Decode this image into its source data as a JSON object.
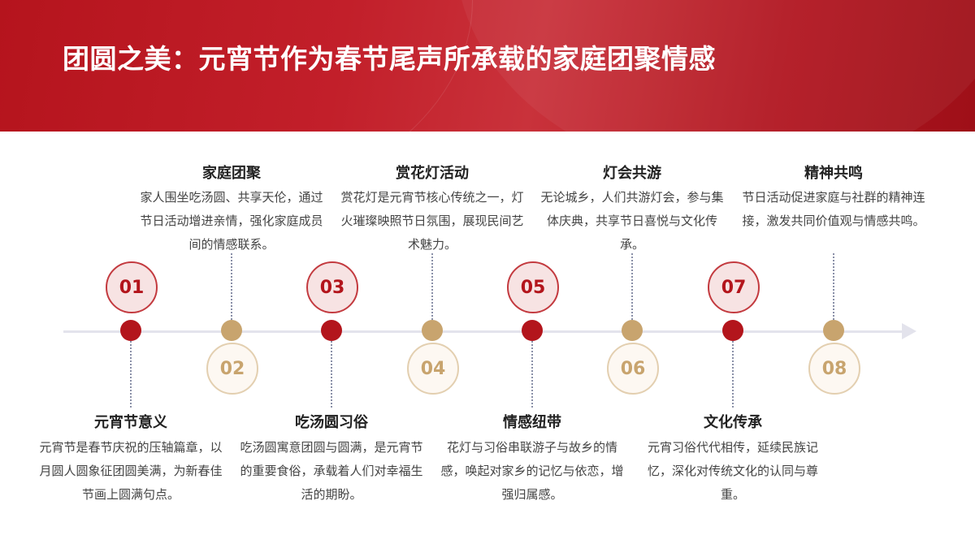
{
  "title": "团圆之美：元宵节作为春节尾声所承载的家庭团聚情感",
  "colors": {
    "header_red": "#b5141d",
    "accent_red": "#b3151c",
    "accent_gold": "#c8a46e",
    "axis": "#e3e3ec"
  },
  "timeline": [
    {
      "num": "01",
      "heading": "元宵节意义",
      "desc": "元宵节是春节庆祝的压轴篇章，以月圆人圆象征团圆美满，为新春佳节画上圆满句点。"
    },
    {
      "num": "02",
      "heading": "家庭团聚",
      "desc": "家人围坐吃汤圆、共享天伦，通过节日活动增进亲情，强化家庭成员间的情感联系。"
    },
    {
      "num": "03",
      "heading": "吃汤圆习俗",
      "desc": "吃汤圆寓意团圆与圆满，是元宵节的重要食俗，承载着人们对幸福生活的期盼。"
    },
    {
      "num": "04",
      "heading": "赏花灯活动",
      "desc": "赏花灯是元宵节核心传统之一，灯火璀璨映照节日氛围，展现民间艺术魅力。"
    },
    {
      "num": "05",
      "heading": "情感纽带",
      "desc": "花灯与习俗串联游子与故乡的情感，唤起对家乡的记忆与依恋，增强归属感。"
    },
    {
      "num": "06",
      "heading": "灯会共游",
      "desc": "无论城乡，人们共游灯会，参与集体庆典，共享节日喜悦与文化传承。"
    },
    {
      "num": "07",
      "heading": "文化传承",
      "desc": "元宵习俗代代相传，延续民族记忆，深化对传统文化的认同与尊重。"
    },
    {
      "num": "08",
      "heading": "精神共鸣",
      "desc": "节日活动促进家庭与社群的精神连接，激发共同价值观与情感共鸣。"
    }
  ]
}
